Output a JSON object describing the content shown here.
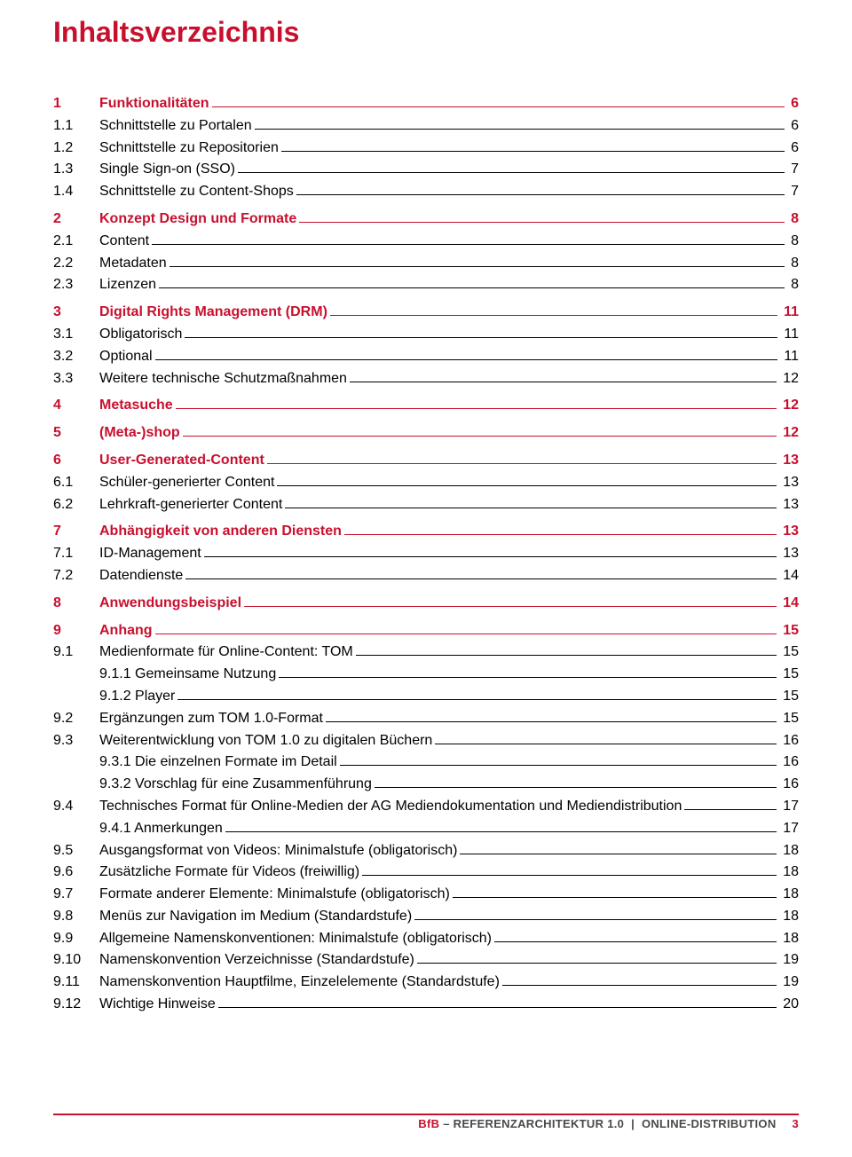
{
  "title": "Inhaltsverzeichnis",
  "colors": {
    "accent": "#c8102e",
    "text": "#000000",
    "grey": "#4a4a4a"
  },
  "toc": [
    {
      "level": 0,
      "num": "1",
      "label": "Funktionalitäten",
      "page": "6"
    },
    {
      "level": 1,
      "num": "1.1",
      "label": "Schnittstelle zu Portalen",
      "page": "6"
    },
    {
      "level": 1,
      "num": "1.2",
      "label": "Schnittstelle zu Repositorien",
      "page": "6"
    },
    {
      "level": 1,
      "num": "1.3",
      "label": "Single Sign-on (SSO)",
      "page": "7"
    },
    {
      "level": 1,
      "num": "1.4",
      "label": "Schnittstelle zu Content-Shops",
      "page": "7"
    },
    {
      "level": 0,
      "num": "2",
      "label": "Konzept Design und Formate",
      "page": "8"
    },
    {
      "level": 1,
      "num": "2.1",
      "label": "Content",
      "page": "8"
    },
    {
      "level": 1,
      "num": "2.2",
      "label": "Metadaten",
      "page": "8"
    },
    {
      "level": 1,
      "num": "2.3",
      "label": "Lizenzen",
      "page": "8"
    },
    {
      "level": 0,
      "num": "3",
      "label": "Digital Rights Management (DRM)",
      "page": "11"
    },
    {
      "level": 1,
      "num": "3.1",
      "label": "Obligatorisch",
      "page": "11"
    },
    {
      "level": 1,
      "num": "3.2",
      "label": "Optional",
      "page": "11"
    },
    {
      "level": 1,
      "num": "3.3",
      "label": "Weitere technische Schutzmaßnahmen",
      "page": "12"
    },
    {
      "level": 0,
      "num": "4",
      "label": "Metasuche",
      "page": "12"
    },
    {
      "level": 0,
      "num": "5",
      "label": "(Meta-)shop",
      "page": "12"
    },
    {
      "level": 0,
      "num": "6",
      "label": "User-Generated-Content",
      "page": "13"
    },
    {
      "level": 1,
      "num": "6.1",
      "label": "Schüler-generierter Content",
      "page": "13"
    },
    {
      "level": 1,
      "num": "6.2",
      "label": "Lehrkraft-generierter Content",
      "page": "13"
    },
    {
      "level": 0,
      "num": "7",
      "label": "Abhängigkeit von anderen Diensten",
      "page": "13"
    },
    {
      "level": 1,
      "num": "7.1",
      "label": "ID-Management",
      "page": "13"
    },
    {
      "level": 1,
      "num": "7.2",
      "label": "Datendienste",
      "page": "14"
    },
    {
      "level": 0,
      "num": "8",
      "label": "Anwendungsbeispiel",
      "page": "14"
    },
    {
      "level": 0,
      "num": "9",
      "label": "Anhang",
      "page": "15"
    },
    {
      "level": 1,
      "num": "9.1",
      "label": "Medienformate für Online-Content: TOM",
      "page": "15"
    },
    {
      "level": 2,
      "num": "",
      "label": "9.1.1 Gemeinsame Nutzung",
      "page": "15"
    },
    {
      "level": 2,
      "num": "",
      "label": "9.1.2 Player",
      "page": "15"
    },
    {
      "level": 1,
      "num": "9.2",
      "label": "Ergänzungen zum TOM 1.0-Format",
      "page": "15"
    },
    {
      "level": 1,
      "num": "9.3",
      "label": "Weiterentwicklung von TOM 1.0 zu digitalen Büchern",
      "page": "16"
    },
    {
      "level": 2,
      "num": "",
      "label": "9.3.1 Die einzelnen Formate im Detail",
      "page": "16"
    },
    {
      "level": 2,
      "num": "",
      "label": "9.3.2 Vorschlag für eine Zusammenführung",
      "page": "16"
    },
    {
      "level": 1,
      "num": "9.4",
      "label": "Technisches Format für Online-Medien der AG Mediendokumentation und Mediendistribution",
      "page": "17"
    },
    {
      "level": 2,
      "num": "",
      "label": "9.4.1 Anmerkungen",
      "page": "17"
    },
    {
      "level": 1,
      "num": "9.5",
      "label": "Ausgangsformat von Videos: Minimalstufe (obligatorisch)",
      "page": "18"
    },
    {
      "level": 1,
      "num": "9.6",
      "label": "Zusätzliche Formate für Videos (freiwillig)",
      "page": "18"
    },
    {
      "level": 1,
      "num": "9.7",
      "label": "Formate anderer Elemente: Minimalstufe (obligatorisch)",
      "page": "18"
    },
    {
      "level": 1,
      "num": "9.8",
      "label": "Menüs zur Navigation im Medium (Standardstufe)",
      "page": "18"
    },
    {
      "level": 1,
      "num": "9.9",
      "label": "Allgemeine Namenskonventionen: Minimalstufe (obligatorisch)",
      "page": "18"
    },
    {
      "level": 1,
      "num": "9.10",
      "label": "Namenskonvention Verzeichnisse (Standardstufe)",
      "page": "19"
    },
    {
      "level": 1,
      "num": "9.11",
      "label": "Namenskonvention Hauptfilme, Einzelelemente (Standardstufe)",
      "page": "19"
    },
    {
      "level": 1,
      "num": "9.12",
      "label": "Wichtige Hinweise",
      "page": "20"
    }
  ],
  "footer": {
    "brand": "BfB",
    "sep": " – ",
    "doc": "REFERENZARCHITEKTUR 1.0",
    "part": "ONLINE-DISTRIBUTION",
    "page": "3"
  }
}
